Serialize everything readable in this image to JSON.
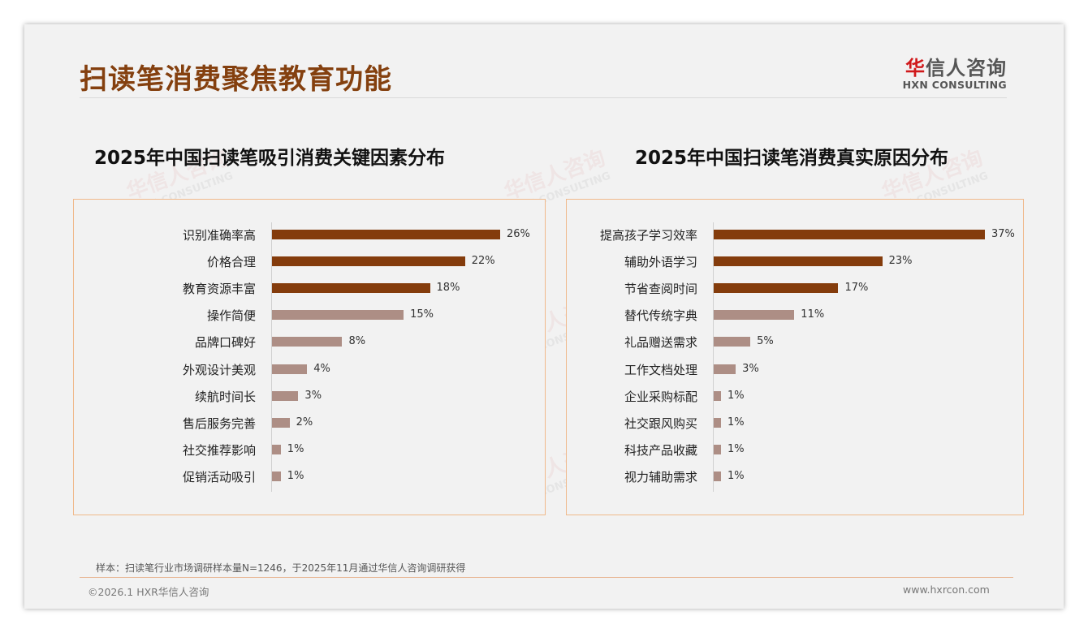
{
  "header": {
    "title": "扫读笔消费聚焦教育功能"
  },
  "logo": {
    "cn_first": "华",
    "cn_rest": "信人咨询",
    "en": "HXN CONSULTING"
  },
  "colors": {
    "primary": "#843c0c",
    "secondary": "#ad8e85",
    "title": "#84400f",
    "border": "#f0b98b"
  },
  "chart_data": [
    {
      "type": "bar",
      "orientation": "horizontal",
      "title": "2025年中国扫读笔吸引消费关键因素分布",
      "categories": [
        "识别准确率高",
        "价格合理",
        "教育资源丰富",
        "操作简便",
        "品牌口碑好",
        "外观设计美观",
        "续航时间长",
        "售后服务完善",
        "社交推荐影响",
        "促销活动吸引"
      ],
      "values": [
        26,
        22,
        18,
        15,
        8,
        4,
        3,
        2,
        1,
        1
      ],
      "labels": [
        "26%",
        "22%",
        "18%",
        "15%",
        "8%",
        "4%",
        "3%",
        "2%",
        "1%",
        "1%"
      ],
      "highlight_top": 3,
      "xlim": [
        0,
        26
      ]
    },
    {
      "type": "bar",
      "orientation": "horizontal",
      "title": "2025年中国扫读笔消费真实原因分布",
      "categories": [
        "提高孩子学习效率",
        "辅助外语学习",
        "节省查阅时间",
        "替代传统字典",
        "礼品赠送需求",
        "工作文档处理",
        "企业采购标配",
        "社交跟风购买",
        "科技产品收藏",
        "视力辅助需求"
      ],
      "values": [
        37,
        23,
        17,
        11,
        5,
        3,
        1,
        1,
        1,
        1
      ],
      "labels": [
        "37%",
        "23%",
        "17%",
        "11%",
        "5%",
        "3%",
        "1%",
        "1%",
        "1%",
        "1%"
      ],
      "highlight_top": 3,
      "xlim": [
        0,
        37
      ]
    }
  ],
  "footer": {
    "note": "样本：扫读笔行业市场调研样本量N=1246，于2025年11月通过华信人咨询调研获得",
    "copyright": "©2026.1 HXR华信人咨询",
    "website": "www.hxrcon.com"
  }
}
